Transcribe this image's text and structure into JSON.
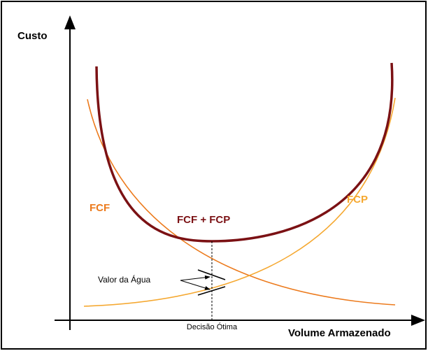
{
  "axes": {
    "y_label": "Custo",
    "x_label": "Volume Armazenado"
  },
  "curves": {
    "fcf": "FCF",
    "fcp": "FCP",
    "sum": "FCF + FCP"
  },
  "annotations": {
    "water_value": "Valor da Água",
    "optimal_decision": "Decisão Ótima"
  }
}
